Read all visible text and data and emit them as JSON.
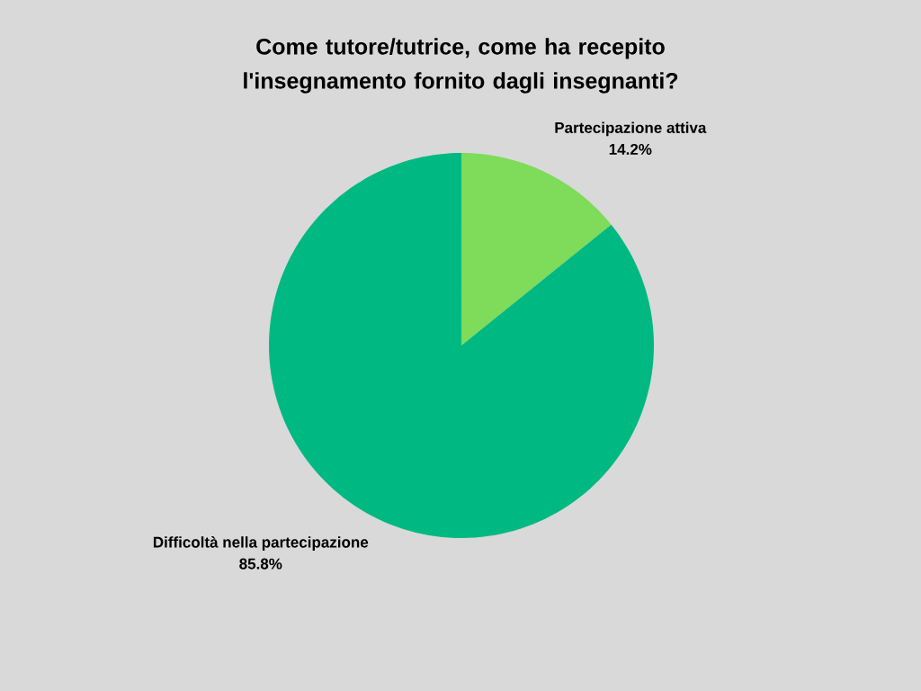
{
  "chart_data": {
    "type": "pie",
    "title": "Come tutore/tutrice, come ha recepito l'insegnamento fornito dagli insegnanti?",
    "categories": [
      "Partecipazione attiva",
      "Difficoltà nella partecipazione"
    ],
    "values": [
      14.2,
      85.8
    ],
    "value_labels": [
      "14.2%",
      "85.8%"
    ],
    "colors": [
      "#7fdb5a",
      "#00b982"
    ]
  }
}
